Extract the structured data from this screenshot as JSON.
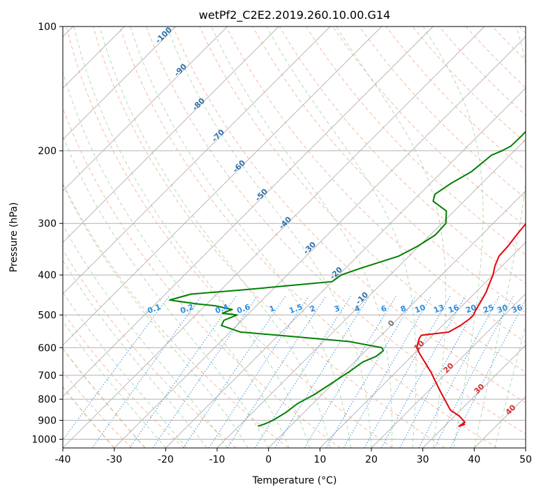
{
  "chart_data": {
    "type": "line",
    "title": "wetPf2_C2E2.2019.260.10.00.G14",
    "xlabel": "Temperature (°C)",
    "ylabel": "Pressure (hPa)",
    "xlim": [
      -40,
      50
    ],
    "ylim": [
      1050,
      100
    ],
    "y_scale": "log",
    "grid": true,
    "x_ticks": [
      -40,
      -30,
      -20,
      -10,
      0,
      10,
      20,
      30,
      40,
      50
    ],
    "y_ticks": [
      1000,
      900,
      800,
      700,
      600,
      500,
      400,
      300,
      200,
      100
    ],
    "series": [
      {
        "color": "#e8000b",
        "points": [
          [
            33.6,
            920
          ],
          [
            32.8,
            930
          ],
          [
            33.2,
            910
          ],
          [
            31,
            880
          ],
          [
            28,
            850
          ],
          [
            22,
            760
          ],
          [
            17,
            690
          ],
          [
            11,
            620
          ],
          [
            9.3,
            600
          ],
          [
            8,
            570
          ],
          [
            7.8,
            560
          ],
          [
            12.5,
            550
          ],
          [
            13.5,
            530
          ],
          [
            14,
            510
          ],
          [
            14,
            500
          ],
          [
            13.6,
            490
          ],
          [
            13,
            470
          ],
          [
            12,
            440
          ],
          [
            11,
            420
          ],
          [
            10,
            400
          ],
          [
            8.6,
            380
          ],
          [
            7.5,
            360
          ],
          [
            7.3,
            340
          ],
          [
            6.8,
            320
          ],
          [
            6.4,
            300
          ],
          [
            7.5,
            285
          ],
          [
            8.6,
            270
          ],
          [
            8.7,
            255
          ],
          [
            8.5,
            230
          ],
          [
            8.3,
            210
          ],
          [
            7.5,
            195
          ],
          [
            6.5,
            180
          ],
          [
            5.9,
            165
          ],
          [
            5.3,
            150
          ],
          [
            4.8,
            140
          ],
          [
            4.6,
            128
          ],
          [
            4.5,
            125
          ],
          [
            6.6,
            117
          ],
          [
            7.1,
            110
          ],
          [
            8.5,
            105
          ],
          [
            9.3,
            100
          ]
        ]
      },
      {
        "color": "#008000",
        "points": [
          [
            -6.3,
            930
          ],
          [
            -5.5,
            920
          ],
          [
            -4.5,
            900
          ],
          [
            -3.5,
            860
          ],
          [
            -3,
            820
          ],
          [
            -1.5,
            780
          ],
          [
            -0.5,
            740
          ],
          [
            0.5,
            700
          ],
          [
            1,
            680
          ],
          [
            1.6,
            650
          ],
          [
            3.1,
            630
          ],
          [
            3.4,
            610
          ],
          [
            2.5,
            600
          ],
          [
            -5,
            580
          ],
          [
            -20,
            560
          ],
          [
            -28,
            550
          ],
          [
            -33,
            530
          ],
          [
            -33.5,
            515
          ],
          [
            -32,
            500
          ],
          [
            -35.2,
            495
          ],
          [
            -34,
            485
          ],
          [
            -38,
            475
          ],
          [
            -42,
            470
          ],
          [
            -48,
            460
          ],
          [
            -45,
            445
          ],
          [
            -36,
            435
          ],
          [
            -28,
            425
          ],
          [
            -24,
            420
          ],
          [
            -20,
            415
          ],
          [
            -19.5,
            400
          ],
          [
            -17,
            385
          ],
          [
            -12,
            360
          ],
          [
            -10.2,
            340
          ],
          [
            -9,
            320
          ],
          [
            -9.2,
            300
          ],
          [
            -11.5,
            280
          ],
          [
            -16,
            265
          ],
          [
            -17,
            255
          ],
          [
            -16,
            240
          ],
          [
            -14.3,
            225
          ],
          [
            -13.6,
            205
          ],
          [
            -12.4,
            200
          ],
          [
            -11.6,
            195
          ],
          [
            -11.5,
            185
          ],
          [
            -11.6,
            175
          ],
          [
            -11.3,
            170
          ],
          [
            -11.8,
            160
          ],
          [
            -9.7,
            150
          ],
          [
            -7.6,
            140
          ],
          [
            -6,
            130
          ],
          [
            -4.7,
            120
          ],
          [
            -3.6,
            115
          ],
          [
            -2.6,
            110
          ],
          [
            -1.2,
            105
          ],
          [
            0,
            100
          ]
        ]
      }
    ],
    "dry_adiabat_labels": [
      "-100",
      "-90",
      "-80",
      "-70",
      "-60",
      "-50",
      "-40",
      "-30",
      "-20",
      "-10"
    ],
    "mixing_ratio_labels": [
      "0.1",
      "0.2",
      "0.4",
      "0.6",
      "1",
      "1.5",
      "2",
      "3",
      "4",
      "6",
      "8",
      "10",
      "13",
      "16",
      "20",
      "25",
      "30",
      "36"
    ],
    "moist_adiabat_labels": [
      "0",
      "10",
      "20",
      "30",
      "40"
    ]
  }
}
